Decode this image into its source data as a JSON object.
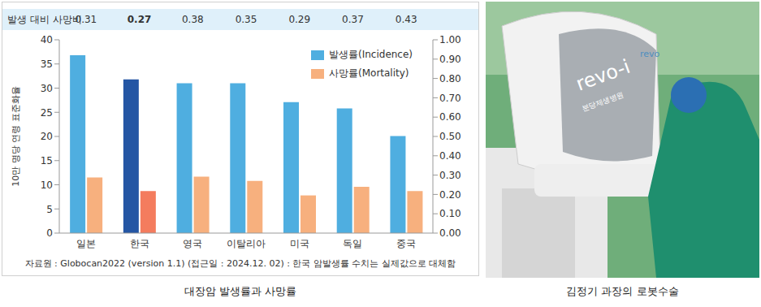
{
  "chart_data": {
    "type": "bar",
    "title": "대장암 발생률과 사망률",
    "categories": [
      "일본",
      "한국",
      "영국",
      "이탈리아",
      "미국",
      "독일",
      "중국"
    ],
    "series": [
      {
        "name": "발생률(Incidence)",
        "color": "#4faee0",
        "colors": [
          "#4faee0",
          "#2456a4",
          "#4faee0",
          "#4faee0",
          "#4faee0",
          "#4faee0",
          "#4faee0"
        ],
        "values": [
          36.8,
          31.8,
          31.0,
          31.0,
          27.1,
          25.8,
          20.1
        ]
      },
      {
        "name": "사망률(Mortality)",
        "color": "#f7b07e",
        "colors": [
          "#f7b07e",
          "#f47c5e",
          "#f7b07e",
          "#f7b07e",
          "#f7b07e",
          "#f7b07e",
          "#f7b07e"
        ],
        "values": [
          11.5,
          8.7,
          11.7,
          10.8,
          7.8,
          9.6,
          8.7
        ]
      }
    ],
    "y_label": "10만 명당 연령 표준화율",
    "ylim": [
      0,
      40
    ],
    "yticks": [
      0,
      5,
      10,
      15,
      20,
      25,
      30,
      35,
      40
    ],
    "y2lim": [
      0,
      1
    ],
    "y2ticks": [
      {
        "value": 0,
        "label": "0.00"
      },
      {
        "value": 0.1,
        "label": "0.10"
      },
      {
        "value": 0.2,
        "label": "0.20"
      },
      {
        "value": 0.3,
        "label": "0.30"
      },
      {
        "value": 0.4,
        "label": "0.40"
      },
      {
        "value": 0.5,
        "label": "0.50"
      },
      {
        "value": 0.6,
        "label": "0.60"
      },
      {
        "value": 0.7,
        "label": "0.70"
      },
      {
        "value": 0.8,
        "label": "0.80"
      },
      {
        "value": 0.9,
        "label": "0.90"
      },
      {
        "value": 1,
        "label": "1.00"
      }
    ],
    "ratio_label": "발생 대비 사망비",
    "ratios": [
      0.31,
      0.27,
      0.38,
      0.35,
      0.29,
      0.37,
      0.43
    ],
    "source": "자료원 : Globocan2022 (version 1.1) (접근일 : 2024.12. 02) : 한국 암발생률 수치는 실제값으로 대체함",
    "legend": "upper right",
    "grid": false
  },
  "photo": {
    "caption": "김정기 과장의 로봇수술",
    "texts": [
      "revo-i",
      "분당제생병원",
      "revo"
    ]
  }
}
